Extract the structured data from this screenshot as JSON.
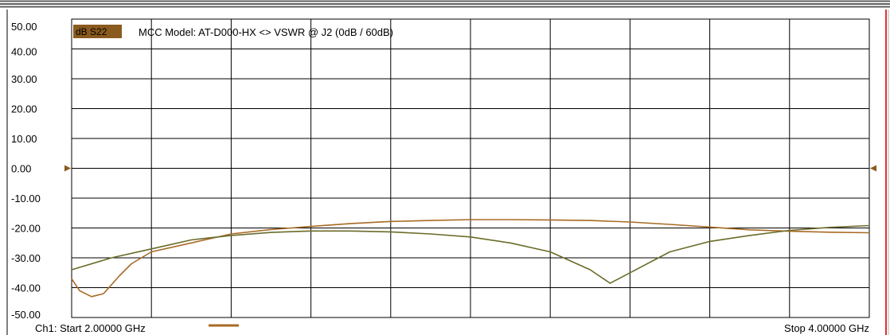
{
  "header": {
    "badge": "dB S22",
    "title": "MCC Model: AT-D000-HX <> VSWR @ J2 (0dB / 60dB)"
  },
  "footer": {
    "start_label": "Ch1: Start  2.00000 GHz",
    "stop_label": "Stop  4.00000 GHz"
  },
  "colors": {
    "trace_primary": "#a86a24",
    "trace_secondary": "#6b6b2a",
    "badge_bg": "#8b5a1f",
    "grid": "#000000",
    "frame_right": "#e03030"
  },
  "chart_data": {
    "type": "line",
    "title": "MCC Model: AT-D000-HX <> VSWR @ J2 (0dB / 60dB)",
    "xlabel": "",
    "ylabel": "",
    "xlim": [
      2.0,
      4.0
    ],
    "ylim": [
      -50,
      50
    ],
    "x_unit": "GHz",
    "y_ticks": [
      "50.00",
      "40.00",
      "30.00",
      "20.00",
      "10.00",
      "0.00",
      "-10.00",
      "-20.00",
      "-30.00",
      "-40.00",
      "-50.00"
    ],
    "y_tick_values": [
      50,
      40,
      30,
      20,
      10,
      0,
      -10,
      -20,
      -30,
      -40,
      -50
    ],
    "grid": true,
    "x_divisions": 10,
    "reference_level": 0,
    "series": [
      {
        "color": "#a86a24",
        "x": [
          2.0,
          2.02,
          2.05,
          2.08,
          2.12,
          2.15,
          2.2,
          2.3,
          2.4,
          2.5,
          2.6,
          2.7,
          2.8,
          2.9,
          3.0,
          3.1,
          3.2,
          3.3,
          3.4,
          3.5,
          3.6,
          3.7,
          3.8,
          3.9,
          4.0
        ],
        "y": [
          -37,
          -41,
          -43,
          -42,
          -36,
          -32,
          -28,
          -25,
          -22,
          -20.5,
          -19.5,
          -18.5,
          -17.8,
          -17.5,
          -17.2,
          -17.2,
          -17.3,
          -17.5,
          -18,
          -18.8,
          -19.7,
          -20.6,
          -21.1,
          -21.4,
          -21.6
        ]
      },
      {
        "color": "#6b6b2a",
        "x": [
          2.0,
          2.1,
          2.2,
          2.3,
          2.4,
          2.5,
          2.6,
          2.7,
          2.8,
          2.9,
          3.0,
          3.1,
          3.2,
          3.3,
          3.35,
          3.4,
          3.5,
          3.6,
          3.7,
          3.8,
          3.9,
          4.0
        ],
        "y": [
          -34,
          -30,
          -27,
          -24,
          -22.5,
          -21.5,
          -21,
          -21,
          -21.3,
          -22,
          -23,
          -25,
          -28,
          -34,
          -38.5,
          -35,
          -28,
          -24.5,
          -22.5,
          -20.8,
          -19.8,
          -19.2
        ]
      }
    ]
  }
}
